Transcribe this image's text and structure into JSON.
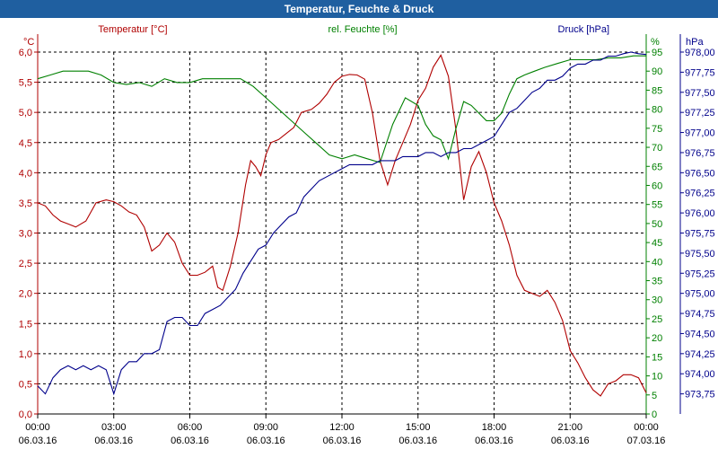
{
  "chart_data": {
    "type": "line",
    "title": "Temperatur, Feuchte & Druck",
    "x_ticks": [
      {
        "time": "00:00",
        "date": "06.03.16"
      },
      {
        "time": "03:00",
        "date": "06.03.16"
      },
      {
        "time": "06:00",
        "date": "06.03.16"
      },
      {
        "time": "09:00",
        "date": "06.03.16"
      },
      {
        "time": "12:00",
        "date": "06.03.16"
      },
      {
        "time": "15:00",
        "date": "06.03.16"
      },
      {
        "time": "18:00",
        "date": "06.03.16"
      },
      {
        "time": "21:00",
        "date": "06.03.16"
      },
      {
        "time": "00:00",
        "date": "07.03.16"
      }
    ],
    "xlim": [
      0,
      24
    ],
    "axes": {
      "temperature": {
        "unit": "°C",
        "label": "Temperatur [°C]",
        "color": "#b00000",
        "ylim": [
          0,
          6
        ],
        "ticks": [
          "0,0",
          "0,5",
          "1,0",
          "1,5",
          "2,0",
          "2,5",
          "3,0",
          "3,5",
          "4,0",
          "4,5",
          "5,0",
          "5,5",
          "6,0"
        ]
      },
      "humidity": {
        "unit": "%",
        "label": "rel. Feuchte [%]",
        "color": "#008000",
        "ylim": [
          0,
          95
        ],
        "ticks": [
          "0",
          "5",
          "10",
          "15",
          "20",
          "25",
          "30",
          "35",
          "40",
          "45",
          "50",
          "55",
          "60",
          "65",
          "70",
          "75",
          "80",
          "85",
          "90",
          "95"
        ]
      },
      "pressure": {
        "unit": "hPa",
        "label": "Druck [hPa]",
        "color": "#00008b",
        "ylim": [
          973.5,
          978.0
        ],
        "ticks": [
          "973,75",
          "974,00",
          "974,25",
          "974,50",
          "974,75",
          "975,00",
          "975,25",
          "975,50",
          "975,75",
          "976,00",
          "976,25",
          "976,50",
          "976,75",
          "977,00",
          "977,25",
          "977,50",
          "977,75",
          "978,00"
        ]
      }
    },
    "series": [
      {
        "name": "Temperatur",
        "axis": "temperature",
        "color": "#b00000",
        "x": [
          0,
          0.3,
          0.6,
          0.9,
          1.2,
          1.5,
          1.9,
          2.3,
          2.7,
          3.0,
          3.3,
          3.6,
          3.9,
          4.2,
          4.5,
          4.8,
          5.1,
          5.4,
          5.7,
          6.0,
          6.3,
          6.6,
          6.9,
          7.1,
          7.3,
          7.6,
          7.9,
          8.2,
          8.4,
          8.6,
          8.8,
          9.0,
          9.2,
          9.5,
          9.8,
          10.1,
          10.4,
          10.8,
          11.1,
          11.4,
          11.7,
          12.0,
          12.3,
          12.6,
          12.9,
          13.2,
          13.5,
          13.8,
          14.1,
          14.4,
          14.7,
          15.0,
          15.3,
          15.6,
          15.9,
          16.2,
          16.5,
          16.8,
          17.1,
          17.4,
          17.7,
          18.0,
          18.3,
          18.6,
          18.9,
          19.2,
          19.5,
          19.8,
          20.1,
          20.4,
          20.7,
          21.0,
          21.3,
          21.6,
          21.9,
          22.2,
          22.5,
          22.8,
          23.1,
          23.4,
          23.7,
          24.0
        ],
        "values": [
          3.5,
          3.45,
          3.3,
          3.2,
          3.15,
          3.1,
          3.2,
          3.5,
          3.55,
          3.52,
          3.45,
          3.35,
          3.3,
          3.1,
          2.7,
          2.8,
          3.0,
          2.85,
          2.5,
          2.3,
          2.3,
          2.35,
          2.45,
          2.1,
          2.05,
          2.45,
          3.0,
          3.8,
          4.2,
          4.1,
          3.95,
          4.3,
          4.5,
          4.55,
          4.65,
          4.75,
          5.0,
          5.05,
          5.15,
          5.3,
          5.5,
          5.6,
          5.63,
          5.62,
          5.55,
          5.0,
          4.2,
          3.8,
          4.2,
          4.5,
          4.8,
          5.2,
          5.4,
          5.75,
          5.95,
          5.6,
          4.7,
          3.55,
          4.1,
          4.35,
          4.0,
          3.5,
          3.2,
          2.8,
          2.3,
          2.05,
          2.0,
          1.95,
          2.05,
          1.85,
          1.55,
          1.05,
          0.85,
          0.6,
          0.4,
          0.3,
          0.5,
          0.55,
          0.65,
          0.65,
          0.6,
          0.35
        ]
      },
      {
        "name": "rel. Feuchte",
        "axis": "humidity",
        "color": "#008000",
        "x": [
          0,
          0.5,
          1.0,
          1.5,
          2.0,
          2.5,
          3.0,
          3.5,
          4.0,
          4.5,
          5.0,
          5.5,
          6.0,
          6.5,
          7.0,
          7.5,
          8.0,
          8.5,
          9.0,
          9.5,
          10.0,
          10.5,
          11.0,
          11.5,
          12.0,
          12.5,
          13.0,
          13.5,
          14.0,
          14.5,
          15.0,
          15.3,
          15.6,
          15.9,
          16.2,
          16.5,
          16.8,
          17.1,
          17.4,
          17.7,
          18.0,
          18.3,
          18.6,
          18.9,
          19.2,
          19.6,
          20.0,
          20.5,
          21.0,
          21.5,
          22.0,
          22.5,
          23.0,
          23.5,
          24.0
        ],
        "values": [
          88,
          89,
          90,
          90,
          90,
          89,
          87,
          86.5,
          87,
          86,
          88,
          87,
          87,
          88,
          88,
          88,
          88,
          86,
          83,
          80,
          77,
          74,
          71,
          68,
          67,
          68,
          67,
          66,
          76,
          83,
          81,
          76,
          73,
          72,
          67,
          75,
          82,
          81,
          79,
          77,
          77,
          79,
          84,
          88,
          89,
          90,
          91,
          92,
          93,
          93,
          93,
          93.5,
          93.5,
          94,
          94
        ]
      },
      {
        "name": "Druck",
        "axis": "pressure",
        "color": "#00008b",
        "x": [
          0,
          0.3,
          0.6,
          0.9,
          1.2,
          1.5,
          1.8,
          2.1,
          2.4,
          2.7,
          3.0,
          3.3,
          3.6,
          3.9,
          4.2,
          4.5,
          4.8,
          5.1,
          5.4,
          5.7,
          6.0,
          6.3,
          6.6,
          6.9,
          7.2,
          7.5,
          7.8,
          8.1,
          8.4,
          8.7,
          9.0,
          9.3,
          9.6,
          9.9,
          10.2,
          10.5,
          10.8,
          11.1,
          11.4,
          11.7,
          12.0,
          12.3,
          12.6,
          12.9,
          13.2,
          13.5,
          13.8,
          14.1,
          14.4,
          14.7,
          15.0,
          15.3,
          15.6,
          15.9,
          16.2,
          16.5,
          16.8,
          17.1,
          17.4,
          17.7,
          18.0,
          18.3,
          18.6,
          18.9,
          19.2,
          19.5,
          19.8,
          20.1,
          20.4,
          20.7,
          21.0,
          21.3,
          21.6,
          21.9,
          22.2,
          22.5,
          22.8,
          23.1,
          23.4,
          23.7,
          24.0
        ],
        "values": [
          973.85,
          973.75,
          973.95,
          974.05,
          974.1,
          974.05,
          974.1,
          974.05,
          974.1,
          974.05,
          973.75,
          974.05,
          974.15,
          974.15,
          974.25,
          974.25,
          974.3,
          974.65,
          974.7,
          974.7,
          974.6,
          974.6,
          974.75,
          974.8,
          974.85,
          974.95,
          975.05,
          975.25,
          975.4,
          975.55,
          975.6,
          975.75,
          975.85,
          975.95,
          976.0,
          976.2,
          976.3,
          976.4,
          976.45,
          976.5,
          976.55,
          976.6,
          976.6,
          976.6,
          976.6,
          976.65,
          976.65,
          976.65,
          976.7,
          976.7,
          976.7,
          976.75,
          976.75,
          976.7,
          976.75,
          976.75,
          976.8,
          976.8,
          976.85,
          976.9,
          976.95,
          977.1,
          977.25,
          977.3,
          977.4,
          977.5,
          977.55,
          977.65,
          977.65,
          977.7,
          977.8,
          977.85,
          977.85,
          977.9,
          977.9,
          977.95,
          977.95,
          977.98,
          978.0,
          977.98,
          977.97
        ]
      }
    ]
  }
}
